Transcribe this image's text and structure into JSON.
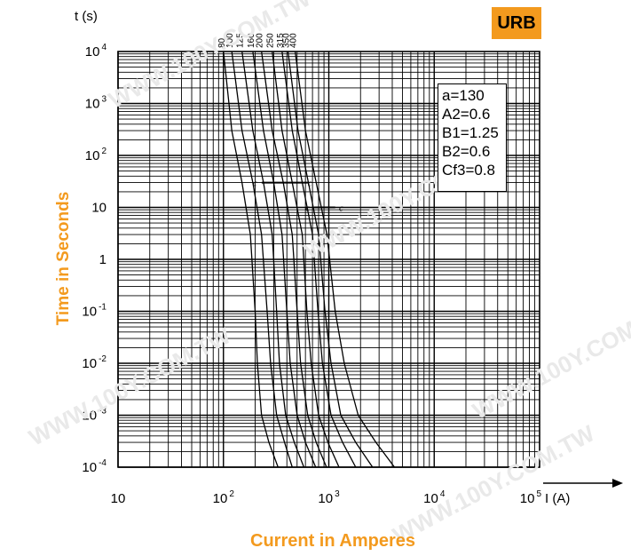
{
  "badge": "URB",
  "parameters": [
    "a=130",
    "A2=0.6",
    "B1=1.25",
    "B2=0.6",
    "Cf3=0.8"
  ],
  "watermark": "WWW.100Y.COM.TW",
  "chart_data": {
    "type": "line",
    "xlabel": "Current in Amperes",
    "ylabel": "Time in Seconds",
    "x_unit_label": "I (A)",
    "y_unit_label": "t (s)",
    "xscale": "log",
    "yscale": "log",
    "xlim": [
      10,
      100000
    ],
    "ylim": [
      0.0001,
      10000
    ],
    "grid": true,
    "x_ticks": [
      {
        "value": 10,
        "base": "10",
        "exp": ""
      },
      {
        "value": 100,
        "base": "10",
        "exp": "2"
      },
      {
        "value": 1000,
        "base": "10",
        "exp": "3"
      },
      {
        "value": 10000,
        "base": "10",
        "exp": "4"
      },
      {
        "value": 100000,
        "base": "10",
        "exp": "5"
      }
    ],
    "y_ticks": [
      {
        "value": 10000,
        "base": "10",
        "exp": "4"
      },
      {
        "value": 1000,
        "base": "10",
        "exp": "3"
      },
      {
        "value": 100,
        "base": "10",
        "exp": "2"
      },
      {
        "value": 10,
        "base": "10",
        "exp": ""
      },
      {
        "value": 1,
        "base": "1",
        "exp": ""
      },
      {
        "value": 0.1,
        "base": "10",
        "exp": "-1"
      },
      {
        "value": 0.01,
        "base": "10",
        "exp": "-2"
      },
      {
        "value": 0.001,
        "base": "10",
        "exp": "-3"
      },
      {
        "value": 0.0001,
        "base": "10",
        "exp": "-4"
      }
    ],
    "series": [
      {
        "name": "80",
        "x": [
          100,
          120,
          150,
          180,
          200,
          210,
          230,
          270,
          330
        ],
        "y": [
          10000,
          300,
          30,
          3,
          0.1,
          0.01,
          0.001,
          0.0003,
          0.0001
        ]
      },
      {
        "name": "100",
        "x": [
          120,
          150,
          190,
          230,
          260,
          280,
          320,
          380,
          450
        ],
        "y": [
          10000,
          300,
          30,
          3,
          0.1,
          0.01,
          0.001,
          0.0003,
          0.0001
        ]
      },
      {
        "name": "125",
        "x": [
          150,
          190,
          240,
          290,
          320,
          340,
          390,
          470,
          580
        ],
        "y": [
          10000,
          300,
          30,
          3,
          0.1,
          0.01,
          0.001,
          0.0003,
          0.0001
        ]
      },
      {
        "name": "160",
        "x": [
          190,
          240,
          300,
          360,
          400,
          430,
          500,
          600,
          750
        ],
        "y": [
          10000,
          300,
          30,
          3,
          0.1,
          0.01,
          0.001,
          0.0003,
          0.0001
        ]
      },
      {
        "name": "200",
        "x": [
          230,
          290,
          370,
          450,
          500,
          540,
          630,
          760,
          950
        ],
        "y": [
          10000,
          300,
          30,
          3,
          0.1,
          0.01,
          0.001,
          0.0003,
          0.0001
        ]
      },
      {
        "name": "250",
        "x": [
          290,
          360,
          450,
          560,
          620,
          680,
          800,
          980,
          1250
        ],
        "y": [
          10000,
          300,
          30,
          3,
          0.1,
          0.01,
          0.001,
          0.0003,
          0.0001
        ]
      },
      {
        "name": "315",
        "x": [
          360,
          450,
          560,
          700,
          790,
          870,
          1050,
          1350,
          1800
        ],
        "y": [
          10000,
          300,
          30,
          3,
          0.1,
          0.01,
          0.001,
          0.0003,
          0.0001
        ]
      },
      {
        "name": "350",
        "x": [
          410,
          510,
          640,
          800,
          920,
          1050,
          1300,
          1800,
          2600
        ],
        "y": [
          10000,
          300,
          30,
          3,
          0.1,
          0.01,
          0.001,
          0.0003,
          0.0001
        ]
      },
      {
        "name": "400",
        "x": [
          480,
          600,
          760,
          960,
          1150,
          1400,
          1900,
          2800,
          4200
        ],
        "y": [
          10000,
          300,
          30,
          3,
          0.1,
          0.01,
          0.001,
          0.0003,
          0.0001
        ]
      }
    ],
    "annotations": [
      {
        "text": "c",
        "x": 190,
        "y": 30,
        "line_to": 650
      },
      {
        "text": "c",
        "x": 630,
        "y": 30
      },
      {
        "text": "c",
        "x": 600,
        "y": 10,
        "line_to": 1150
      },
      {
        "text": "c",
        "x": 1250,
        "y": 10
      }
    ]
  }
}
